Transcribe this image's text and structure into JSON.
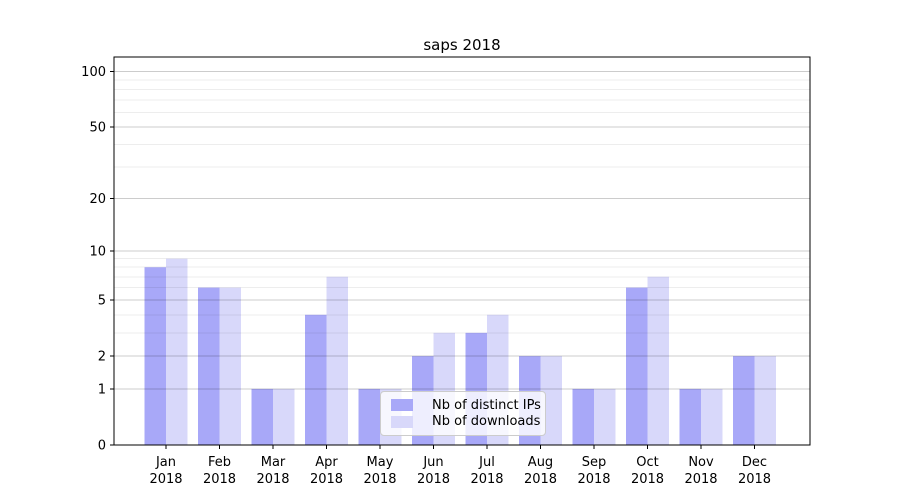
{
  "chart_data": {
    "type": "bar",
    "title": "saps 2018",
    "categories": [
      "Jan",
      "Feb",
      "Mar",
      "Apr",
      "May",
      "Jun",
      "Jul",
      "Aug",
      "Sep",
      "Oct",
      "Nov",
      "Dec"
    ],
    "year_label": "2018",
    "series": [
      {
        "name": "Nb of distinct IPs",
        "color": "#a8a8f8",
        "values": [
          8,
          6,
          1,
          4,
          1,
          2,
          3,
          2,
          1,
          6,
          1,
          2
        ]
      },
      {
        "name": "Nb of downloads",
        "color": "#d8d8fa",
        "values": [
          9,
          6,
          1,
          7,
          1,
          3,
          4,
          2,
          1,
          7,
          1,
          2
        ]
      }
    ],
    "yscale": "log1p",
    "ylim": [
      0,
      120
    ],
    "y_major_ticks": [
      0,
      1,
      2,
      5,
      10,
      20,
      50,
      100
    ],
    "y_minor_ticks": [
      3,
      4,
      6,
      7,
      8,
      9,
      30,
      40,
      60,
      70,
      80,
      90
    ],
    "grid": "on",
    "legend_position": "lower center"
  },
  "colors": {
    "grid_major": "rgba(0,0,0,0.20)",
    "grid_minor": "rgba(0,0,0,0.07)",
    "spine": "#000000",
    "tick_label": "#000000"
  }
}
